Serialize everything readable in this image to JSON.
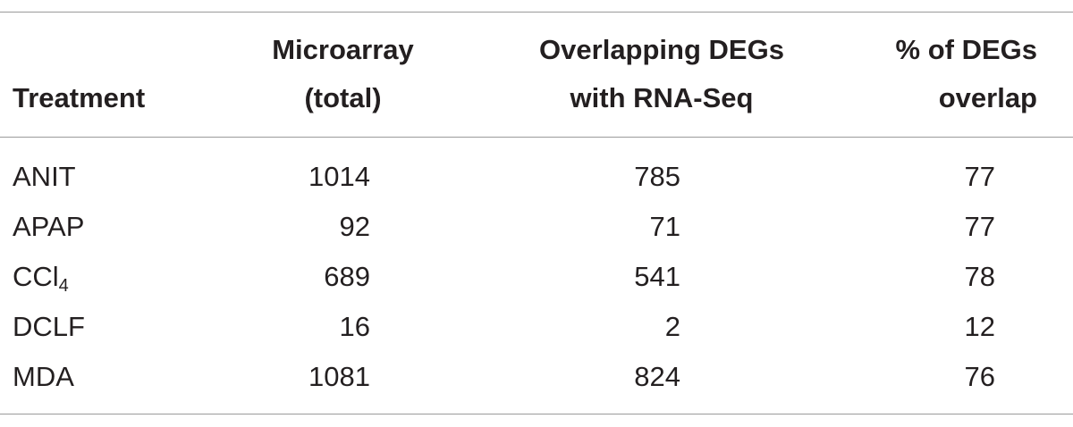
{
  "table": {
    "headers": {
      "treatment": "Treatment",
      "microarray_line1": "Microarray",
      "microarray_line2": "(total)",
      "overlapping_line1": "Overlapping DEGs",
      "overlapping_line2": "with RNA-Seq",
      "pct_line1": "% of DEGs",
      "pct_line2": "overlap"
    },
    "rows": [
      {
        "treatment": "ANIT",
        "treatment_sub": "",
        "microarray": "1014",
        "overlapping": "785",
        "pct": "77"
      },
      {
        "treatment": "APAP",
        "treatment_sub": "",
        "microarray": "92",
        "overlapping": "71",
        "pct": "77"
      },
      {
        "treatment": "CCl",
        "treatment_sub": "4",
        "microarray": "689",
        "overlapping": "541",
        "pct": "78"
      },
      {
        "treatment": "DCLF",
        "treatment_sub": "",
        "microarray": "16",
        "overlapping": "2",
        "pct": "12"
      },
      {
        "treatment": "MDA",
        "treatment_sub": "",
        "microarray": "1081",
        "overlapping": "824",
        "pct": "76"
      }
    ]
  }
}
